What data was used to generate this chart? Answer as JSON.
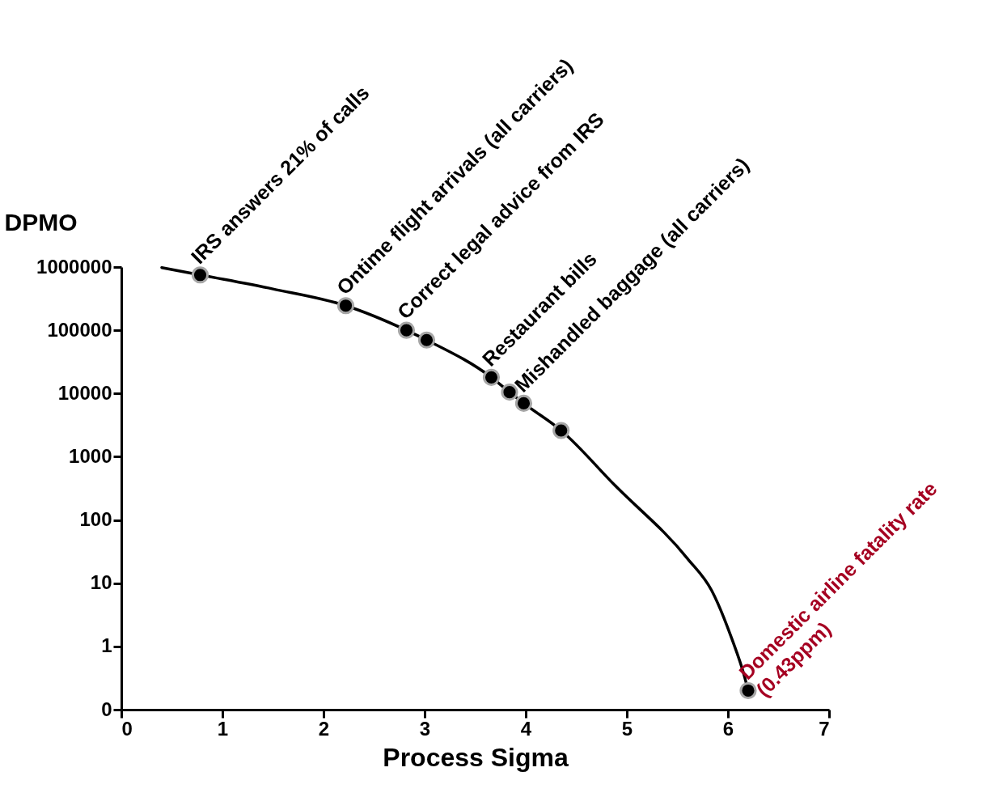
{
  "chart_data": {
    "type": "scatter",
    "xlabel": "Process Sigma",
    "ylabel": "DPMO",
    "xlim": [
      0,
      7
    ],
    "xticks": [
      0,
      1,
      2,
      3,
      4,
      5,
      6,
      7
    ],
    "ylim": [
      0.1,
      1000000
    ],
    "yticks": [
      {
        "value": 0.1,
        "label": "0"
      },
      1,
      10,
      100,
      1000,
      10000,
      100000,
      1000000
    ],
    "log": "y",
    "grid": false,
    "series": [
      {
        "type": "line",
        "color": "#000000",
        "line_style": "solid",
        "x": [
          0.4,
          0.78,
          1.5,
          2.22,
          2.82,
          3.02,
          3.66,
          3.84,
          3.98,
          4.35,
          4.88,
          5.6,
          5.84,
          6.04,
          6.16,
          6.2
        ],
        "values": [
          980000,
          750000,
          450000,
          245000,
          100000,
          70000,
          18000,
          10500,
          7000,
          2600,
          355,
          24.5,
          7.6,
          1.3,
          0.35,
          0.2
        ]
      },
      {
        "color": "#000000",
        "marker": "circle",
        "x": [
          0.78,
          2.22,
          2.82,
          3.02,
          3.66,
          3.84,
          3.98,
          4.35,
          6.2
        ],
        "values": [
          750000,
          245000,
          100000,
          70000,
          18000,
          10500,
          7000,
          2600,
          0.2
        ]
      }
    ],
    "annotations": [
      {
        "text": "IRS answers 21% of calls",
        "x": 0.78,
        "y": 750000
      },
      {
        "text": "Ontime flight arrivals (all carriers)",
        "x": 2.22,
        "y": 245000
      },
      {
        "text": "Correct legal advice from IRS",
        "x": 2.82,
        "y": 100000
      },
      {
        "text": "Restaurant bills",
        "x": 3.66,
        "y": 18000
      },
      {
        "text": "Mishandled baggage (all carriers)",
        "x": 3.98,
        "y": 7000
      },
      {
        "text": "Domestic airline fatality rate\n(0.43ppm)",
        "x": 6.2,
        "y": 0.2
      }
    ]
  }
}
